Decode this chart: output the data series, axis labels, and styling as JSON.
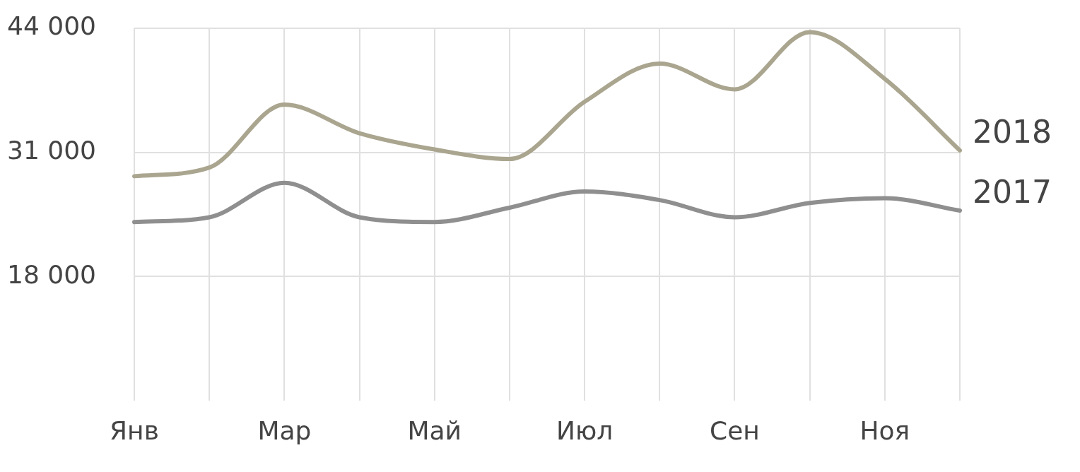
{
  "chart_data": {
    "type": "line",
    "categories": [
      "Янв",
      null,
      "Мар",
      null,
      "Май",
      null,
      "Июл",
      null,
      "Сен",
      null,
      "Ноя",
      null
    ],
    "series": [
      {
        "name": "2018",
        "color": "#aaa58f",
        "values": [
          28500,
          29400,
          36000,
          33000,
          31300,
          30300,
          36300,
          40300,
          37600,
          43600,
          38700,
          31200
        ]
      },
      {
        "name": "2017",
        "color": "#8f8f8f",
        "values": [
          23700,
          24200,
          27800,
          24200,
          23700,
          25200,
          26900,
          26000,
          24200,
          25700,
          26200,
          24900
        ]
      }
    ],
    "ylim": [
      5000,
      44000
    ],
    "yticks": [
      18000,
      31000,
      44000
    ],
    "grid": true,
    "legend": false,
    "marker": "none",
    "line_style": "solid"
  }
}
